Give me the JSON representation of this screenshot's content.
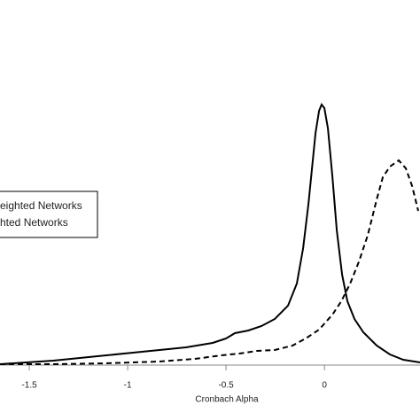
{
  "chart_data": {
    "type": "line",
    "x_label": "Cronbach Alpha",
    "xlim": [
      -1.649,
      0.486
    ],
    "xticks": [
      -1.5,
      -1.0,
      -0.5,
      0.0
    ],
    "ylim": [
      0,
      8
    ],
    "legend": "left",
    "series": [
      {
        "name": "eighted Networks",
        "color": "#000000",
        "line_style": "solid",
        "x": [
          -1.649,
          -1.514,
          -1.378,
          -1.243,
          -1.108,
          -0.973,
          -0.838,
          -0.703,
          -0.568,
          -0.5,
          -0.455,
          -0.387,
          -0.32,
          -0.252,
          -0.185,
          -0.14,
          -0.108,
          -0.081,
          -0.063,
          -0.045,
          -0.027,
          -0.014,
          0,
          0.018,
          0.041,
          0.063,
          0.09,
          0.117,
          0.153,
          0.198,
          0.266,
          0.333,
          0.401,
          0.486
        ],
        "values": [
          0,
          0.04,
          0.08,
          0.14,
          0.2,
          0.26,
          0.32,
          0.38,
          0.48,
          0.58,
          0.7,
          0.76,
          0.86,
          1.02,
          1.32,
          1.82,
          2.62,
          3.62,
          4.42,
          5.22,
          5.72,
          5.86,
          5.78,
          5.32,
          4.22,
          3.02,
          2.02,
          1.42,
          1.02,
          0.72,
          0.42,
          0.22,
          0.1,
          0.04
        ]
      },
      {
        "name": "hted Networks",
        "color": "#000000",
        "line_style": "dashed",
        "x": [
          -1.649,
          -1.378,
          -1.108,
          -0.838,
          -0.658,
          -0.523,
          -0.432,
          -0.342,
          -0.252,
          -0.162,
          -0.095,
          -0.027,
          0.041,
          0.086,
          0.131,
          0.176,
          0.221,
          0.266,
          0.297,
          0.333,
          0.378,
          0.414,
          0.446,
          0.477
        ],
        "values": [
          0,
          0,
          0.02,
          0.06,
          0.12,
          0.2,
          0.24,
          0.3,
          0.32,
          0.42,
          0.58,
          0.78,
          1.12,
          1.42,
          1.82,
          2.32,
          2.92,
          3.72,
          4.22,
          4.46,
          4.6,
          4.42,
          4.02,
          3.46
        ]
      }
    ]
  }
}
